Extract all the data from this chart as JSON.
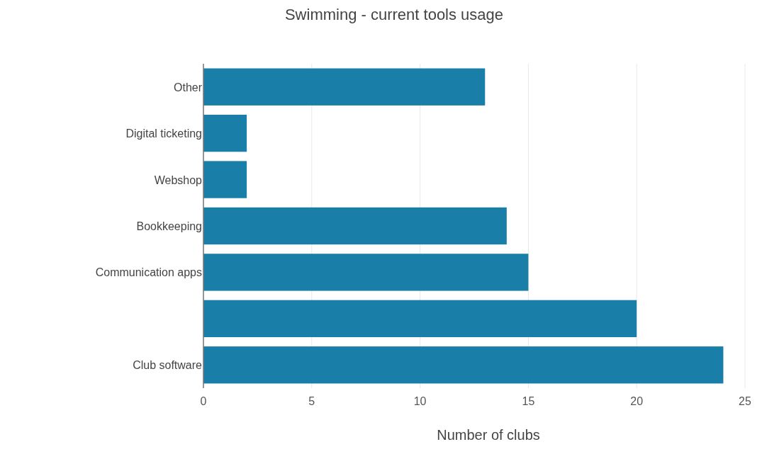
{
  "chart_data": {
    "type": "bar",
    "title": "Swimming - current tools usage",
    "xlabel": "Number of clubs",
    "orientation": "horizontal",
    "categories": [
      "Other",
      "Digital ticketing",
      "Webshop",
      "Bookkeeping",
      "Communication apps",
      null,
      "Club software"
    ],
    "values": [
      13,
      2,
      2,
      14,
      15,
      20,
      24
    ],
    "color": "#1a7fa8",
    "xlim": [
      0,
      25
    ],
    "xticks": [
      0,
      5,
      10,
      15,
      20,
      25
    ],
    "grid": "x"
  }
}
